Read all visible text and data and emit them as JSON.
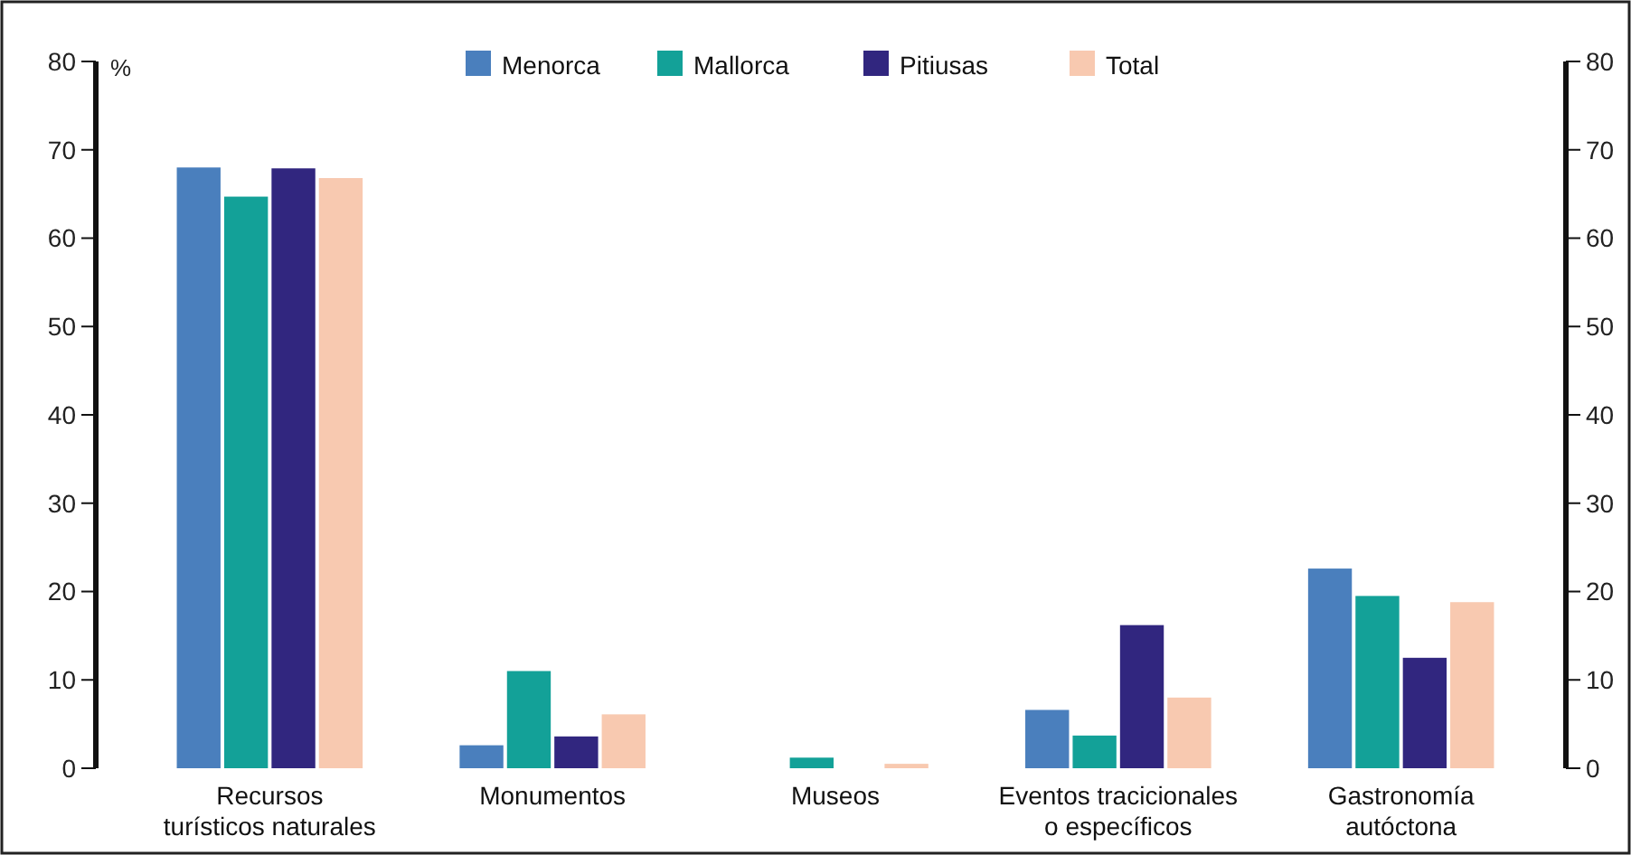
{
  "chart_data": {
    "type": "bar",
    "ylabel": "%",
    "categories": [
      "Recursos\nturísticos naturales",
      "Monumentos",
      "Museos",
      "Eventos tracicionales\no específicos",
      "Gastronomía\nautóctona"
    ],
    "series": [
      {
        "name": "Menorca",
        "color": "#4a7fbd",
        "values": [
          68,
          2.6,
          0,
          6.6,
          22.6
        ]
      },
      {
        "name": "Mallorca",
        "color": "#13a198",
        "values": [
          64.7,
          11,
          1.2,
          3.7,
          19.5
        ]
      },
      {
        "name": "Pitiusas",
        "color": "#31267f",
        "values": [
          67.9,
          3.6,
          0,
          16.2,
          12.5
        ]
      },
      {
        "name": "Total",
        "color": "#f8c9b0",
        "values": [
          66.8,
          6.1,
          0.5,
          8,
          18.8
        ]
      }
    ],
    "ylim": [
      0,
      80
    ],
    "yticks": [
      0,
      10,
      20,
      30,
      40,
      50,
      60,
      70,
      80
    ],
    "y2lim": [
      0,
      80
    ],
    "y2ticks": [
      0,
      10,
      20,
      30,
      40,
      50,
      60,
      70,
      80
    ],
    "legend": "top",
    "grid": false
  }
}
